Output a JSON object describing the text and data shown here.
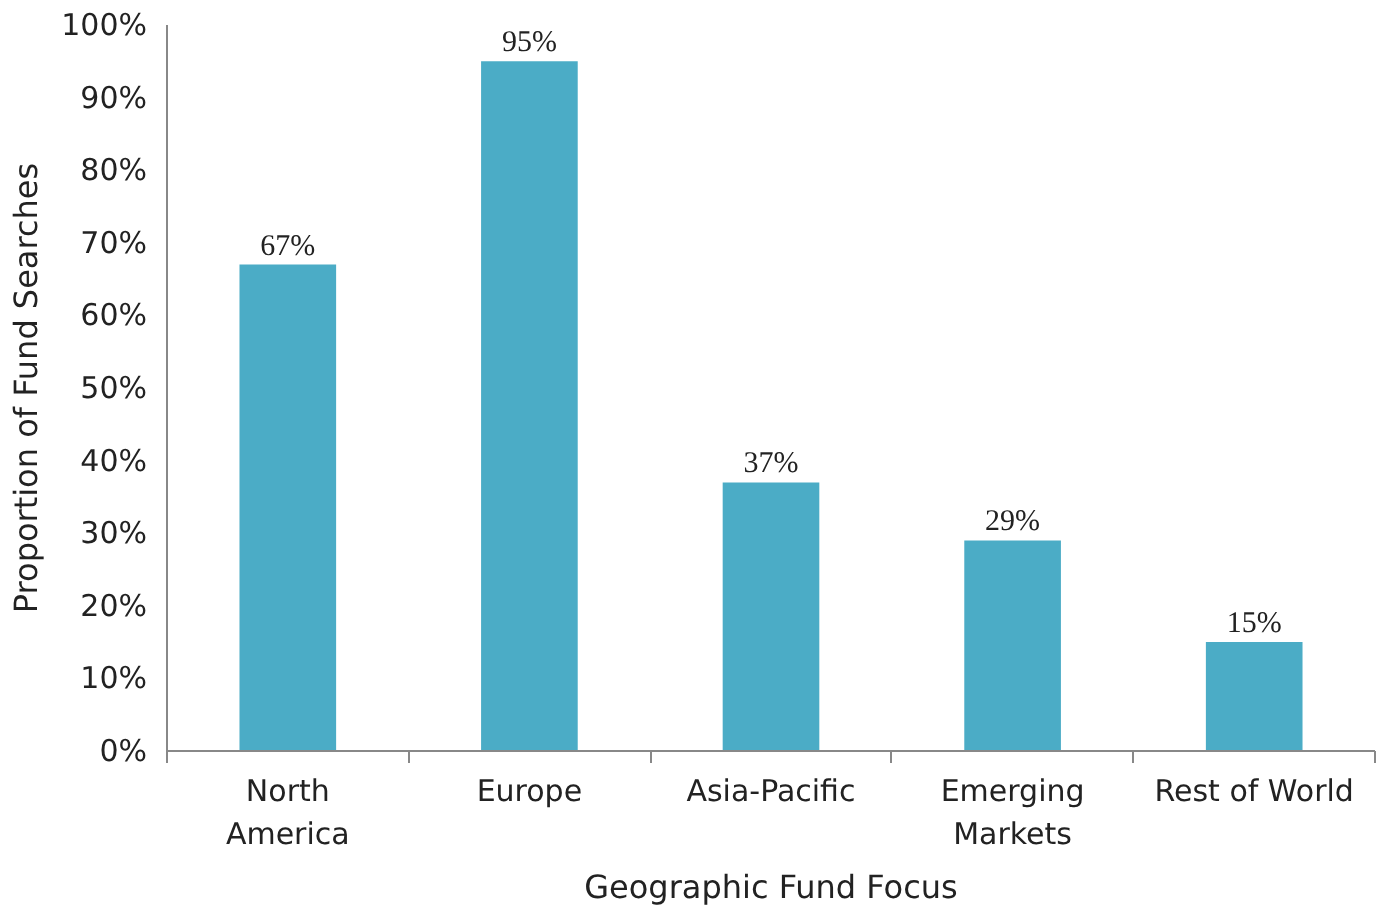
{
  "chart_data": {
    "type": "bar",
    "xlabel": "Geographic Fund Focus",
    "ylabel": "Proportion of Fund Searches",
    "categories": [
      "North\nAmerica",
      "Europe",
      "Asia-Pacific",
      "Emerging\nMarkets",
      "Rest of World"
    ],
    "values": [
      67,
      95,
      37,
      29,
      15
    ],
    "value_labels": [
      "67%",
      "95%",
      "37%",
      "29%",
      "15%"
    ],
    "color": "#4bacc6",
    "ylim": [
      0,
      100
    ],
    "yticks": [
      {
        "value": 0,
        "label": "0%"
      },
      {
        "value": 10,
        "label": "10%"
      },
      {
        "value": 20,
        "label": "20%"
      },
      {
        "value": 30,
        "label": "30%"
      },
      {
        "value": 40,
        "label": "40%"
      },
      {
        "value": 50,
        "label": "50%"
      },
      {
        "value": 60,
        "label": "60%"
      },
      {
        "value": 70,
        "label": "70%"
      },
      {
        "value": 80,
        "label": "80%"
      },
      {
        "value": 90,
        "label": "90%"
      },
      {
        "value": 100,
        "label": "100%"
      }
    ],
    "grid": false
  }
}
